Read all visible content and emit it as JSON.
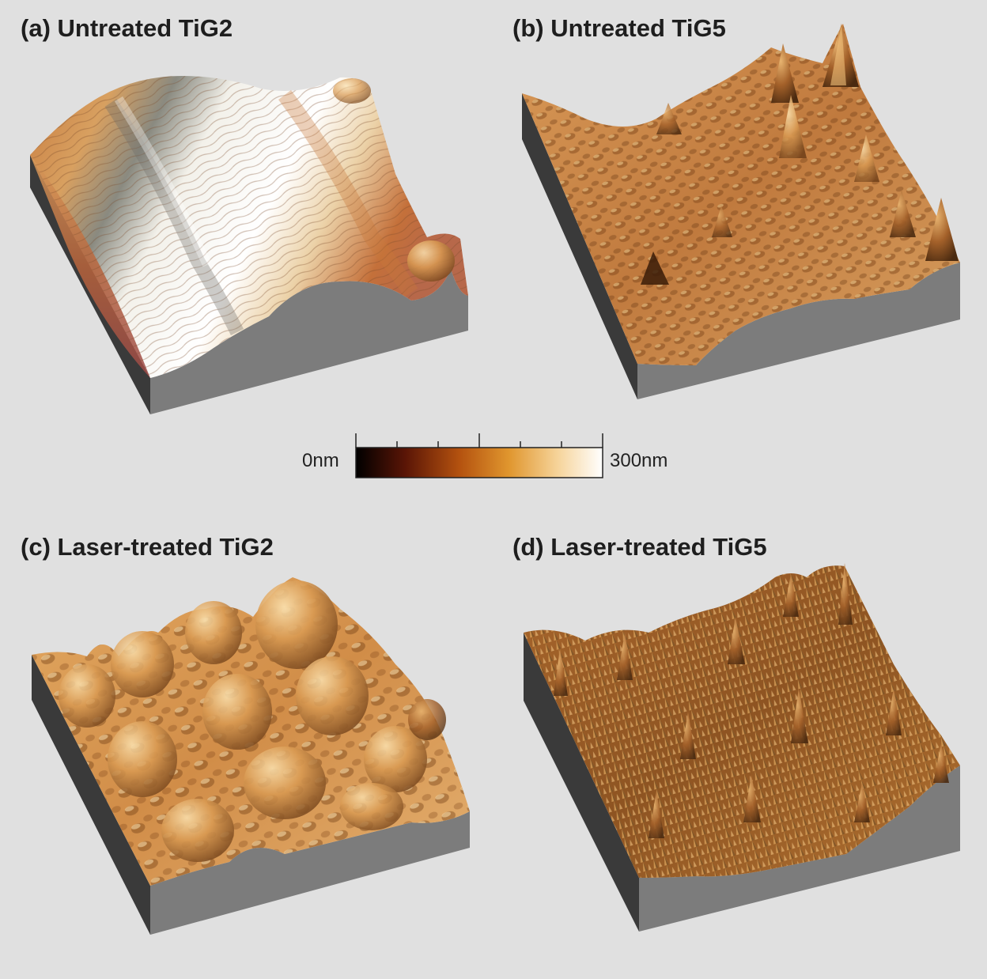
{
  "figure": {
    "panels": [
      {
        "id": "a",
        "label": "(a) Untreated TiG2"
      },
      {
        "id": "b",
        "label": "(b) Untreated TiG5"
      },
      {
        "id": "c",
        "label": "(c) Laser-treated TiG2"
      },
      {
        "id": "d",
        "label": "(d) Laser-treated TiG5"
      }
    ],
    "colorbar": {
      "min_label": "0nm",
      "max_label": "300nm",
      "colormap": [
        "#000000",
        "#5a1506",
        "#b4520f",
        "#e0962e",
        "#f6d49b",
        "#ffffff"
      ]
    },
    "colors": {
      "background": "#e0e0e0",
      "block_side": "#7a7a7a",
      "block_side_dark": "#3c3c3c"
    }
  }
}
